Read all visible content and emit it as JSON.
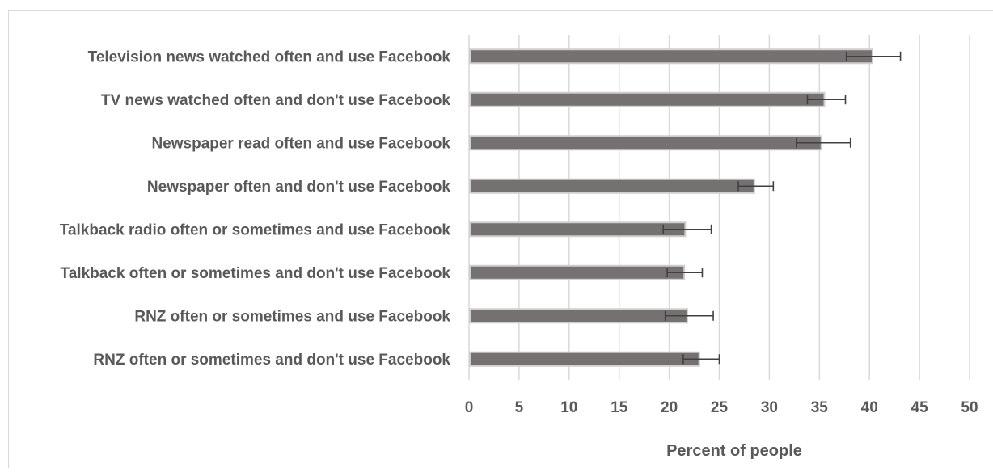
{
  "chart_data": {
    "type": "bar",
    "orientation": "horizontal",
    "title": "",
    "xlabel": "Percent of people",
    "ylabel": "",
    "xlim": [
      0,
      50
    ],
    "xticks": [
      0,
      5,
      10,
      15,
      20,
      25,
      30,
      35,
      40,
      45,
      50
    ],
    "grid": true,
    "legend": "none",
    "bar_color": "#757171",
    "error_bar_color": "#404040",
    "categories": [
      "Television news watched often and use Facebook",
      "TV news watched often and don't use Facebook",
      "Newspaper read often and use Facebook",
      "Newspaper often and don't use Facebook",
      "Talkback radio often or sometimes and use Facebook",
      "Talkback often or sometimes and don't use Facebook",
      "RNZ often or sometimes and use Facebook",
      "RNZ often or sometimes and don't use Facebook"
    ],
    "values": [
      40.3,
      35.5,
      35.2,
      28.5,
      21.6,
      21.5,
      21.8,
      23.0
    ],
    "error_low": [
      37.7,
      33.8,
      32.7,
      26.9,
      19.4,
      19.8,
      19.6,
      21.4
    ],
    "error_high": [
      43.1,
      37.6,
      38.1,
      30.4,
      24.2,
      23.3,
      24.4,
      25.0
    ]
  }
}
